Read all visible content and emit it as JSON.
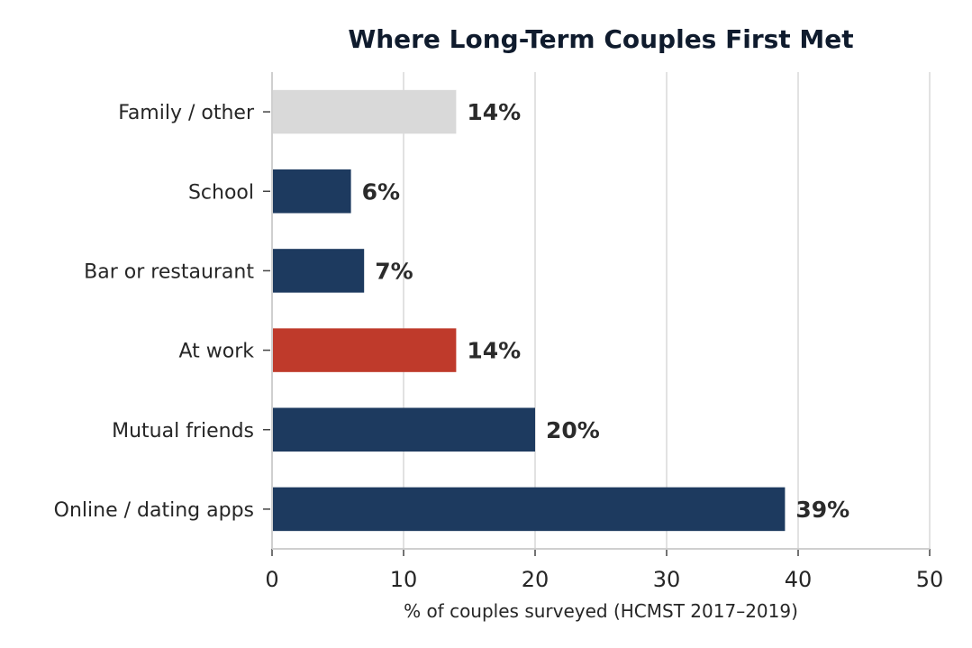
{
  "chart_data": {
    "type": "bar",
    "orientation": "horizontal",
    "title": "Where Long-Term Couples First Met",
    "xlabel": "% of couples surveyed (HCMST 2017–2019)",
    "ylabel": "",
    "xlim": [
      0,
      50
    ],
    "xticks": [
      0,
      10,
      20,
      30,
      40,
      50
    ],
    "grid": "vertical",
    "categories": [
      "Online / dating apps",
      "Mutual friends",
      "At work",
      "Bar or restaurant",
      "School",
      "Family / other"
    ],
    "values": [
      39,
      20,
      14,
      7,
      6,
      14
    ],
    "data_labels": [
      "39%",
      "20%",
      "14%",
      "7%",
      "6%",
      "14%"
    ],
    "colors": [
      "#1d3a5f",
      "#1d3a5f",
      "#bf3a2b",
      "#1d3a5f",
      "#1d3a5f",
      "#d9d9d9"
    ]
  }
}
